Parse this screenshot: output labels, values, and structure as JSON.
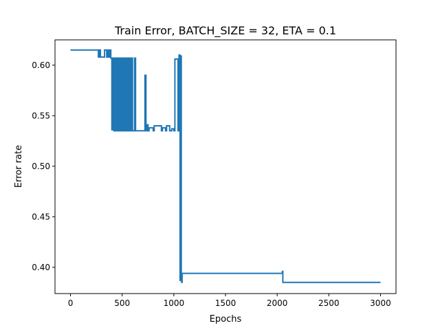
{
  "chart_data": {
    "type": "line",
    "title": "Train Error, BATCH_SIZE = 32, ETA = 0.1",
    "xlabel": "Epochs",
    "ylabel": "Error rate",
    "xlim": [
      -150,
      3150
    ],
    "ylim": [
      0.374,
      0.625
    ],
    "xticks": [
      0,
      500,
      1000,
      1500,
      2000,
      2500,
      3000
    ],
    "yticks": [
      0.4,
      0.45,
      0.5,
      0.55,
      0.6
    ],
    "xtick_labels": [
      "0",
      "500",
      "1000",
      "1500",
      "2000",
      "2500",
      "3000"
    ],
    "ytick_labels": [
      "0.40",
      "0.45",
      "0.50",
      "0.55",
      "0.60"
    ],
    "grid": false,
    "legend": "none",
    "color": "#1f77b4",
    "series": [
      {
        "x": [
          0,
          270,
          270,
          280,
          280,
          290,
          290,
          330,
          330,
          350,
          350,
          360,
          360,
          370,
          370,
          380,
          380,
          390,
          390,
          400,
          400,
          410,
          410,
          420,
          420,
          430,
          430,
          440,
          440,
          450,
          450,
          460,
          460,
          470,
          470,
          480,
          480,
          490,
          490,
          500,
          500,
          510,
          510,
          520,
          520,
          530,
          530,
          540,
          540,
          550,
          550,
          560,
          560,
          570,
          570,
          580,
          580,
          590,
          590,
          600,
          600,
          620,
          620,
          630,
          630,
          720,
          720,
          730,
          730,
          740,
          740,
          750,
          750,
          760,
          760,
          800,
          800,
          810,
          810,
          880,
          880,
          890,
          890,
          920,
          920,
          930,
          930,
          960,
          960,
          980,
          980,
          1000,
          1000,
          1010,
          1010,
          1040,
          1040,
          1050,
          1050,
          1060,
          1060,
          1063,
          1063,
          1066,
          1066,
          1069,
          1069,
          1072,
          1072,
          1076,
          1076,
          1080,
          1080,
          1083,
          1083,
          1090,
          1090,
          2050,
          2050,
          2055,
          2055,
          3000
        ],
        "y": [
          0.615,
          0.615,
          0.608,
          0.608,
          0.615,
          0.615,
          0.608,
          0.608,
          0.615,
          0.615,
          0.608,
          0.608,
          0.615,
          0.615,
          0.608,
          0.608,
          0.615,
          0.615,
          0.607,
          0.607,
          0.536,
          0.536,
          0.607,
          0.607,
          0.535,
          0.535,
          0.607,
          0.607,
          0.535,
          0.535,
          0.607,
          0.607,
          0.535,
          0.535,
          0.607,
          0.607,
          0.535,
          0.535,
          0.607,
          0.607,
          0.535,
          0.535,
          0.607,
          0.607,
          0.535,
          0.535,
          0.607,
          0.607,
          0.535,
          0.535,
          0.607,
          0.607,
          0.535,
          0.535,
          0.607,
          0.607,
          0.535,
          0.535,
          0.607,
          0.607,
          0.535,
          0.535,
          0.607,
          0.607,
          0.535,
          0.535,
          0.59,
          0.59,
          0.535,
          0.535,
          0.541,
          0.541,
          0.535,
          0.535,
          0.538,
          0.538,
          0.535,
          0.535,
          0.54,
          0.54,
          0.535,
          0.535,
          0.538,
          0.538,
          0.535,
          0.535,
          0.54,
          0.54,
          0.535,
          0.535,
          0.537,
          0.537,
          0.535,
          0.535,
          0.606,
          0.606,
          0.535,
          0.535,
          0.61,
          0.61,
          0.387,
          0.387,
          0.608,
          0.608,
          0.595,
          0.595,
          0.609,
          0.609,
          0.393,
          0.393,
          0.385,
          0.385,
          0.394,
          0.394,
          0.394,
          0.394,
          0.394,
          0.394,
          0.396,
          0.396,
          0.385,
          0.385
        ]
      }
    ]
  }
}
